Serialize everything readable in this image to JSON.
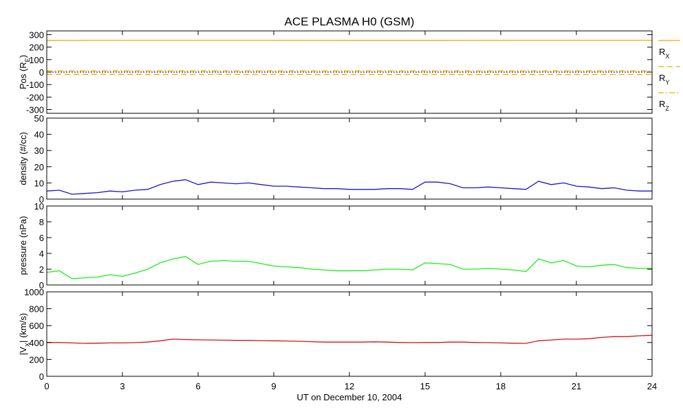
{
  "chart_data": {
    "title": "ACE PLASMA H0 (GSM)",
    "x_axis": {
      "label": "UT on December 10, 2004",
      "range": [
        0,
        24
      ],
      "ticks": [
        0,
        3,
        6,
        9,
        12,
        15,
        18,
        21,
        24
      ],
      "tick_labels": [
        "0",
        "3",
        "6",
        "9",
        "12",
        "15",
        "18",
        "21",
        "24"
      ]
    },
    "panels": [
      {
        "type": "line",
        "ylabel_main": "Pos (R",
        "ylabel_sub": "E",
        "ylabel_end": ")",
        "ylim": [
          -330,
          330
        ],
        "yticks": [
          -300,
          -200,
          -100,
          0,
          100,
          200,
          300
        ],
        "ytick_labels": [
          "-300",
          "-200",
          "-100",
          "0",
          "100",
          "200",
          "300"
        ],
        "zero_line": true,
        "series": [
          {
            "name_main": "R",
            "name_sub": "X",
            "dash": "solid",
            "color": "#f5a800",
            "x": [
              0,
              24
            ],
            "values": [
              254,
              255
            ]
          },
          {
            "name_main": "R",
            "name_sub": "Y",
            "dash": "dashed",
            "color": "#f5a800",
            "x": [
              0,
              24
            ],
            "values": [
              -18,
              -19
            ]
          },
          {
            "name_main": "R",
            "name_sub": "Z",
            "dash": "dashdot",
            "color": "#f5a800",
            "x": [
              0,
              24
            ],
            "values": [
              10,
              10
            ]
          }
        ]
      },
      {
        "type": "line",
        "ylabel_main": "density (#/cc)",
        "ylim": [
          0,
          50
        ],
        "yticks": [
          0,
          10,
          20,
          30,
          40,
          50
        ],
        "ytick_labels": [
          "0",
          "10",
          "20",
          "30",
          "40",
          "50"
        ],
        "series": [
          {
            "color": "#1f13c9",
            "x": [
              0,
              0.5,
              1,
              1.5,
              2,
              2.5,
              3,
              3.5,
              4,
              4.5,
              5,
              5.5,
              6,
              6.5,
              7,
              7.5,
              8,
              8.5,
              9,
              9.5,
              10,
              10.5,
              11,
              11.5,
              12,
              12.5,
              13,
              13.5,
              14,
              14.5,
              15,
              15.5,
              16,
              16.5,
              17,
              17.5,
              18,
              18.5,
              19,
              19.5,
              20,
              20.5,
              21,
              21.5,
              22,
              22.5,
              23,
              23.5,
              24
            ],
            "values": [
              5,
              5.5,
              3,
              3.5,
              4,
              5,
              4.5,
              5.5,
              6,
              9,
              11,
              12,
              9,
              10.5,
              10,
              9.5,
              10,
              9,
              8,
              8,
              7.5,
              7,
              6.5,
              6.5,
              6,
              6,
              6,
              6.5,
              6.5,
              6,
              10.5,
              10.5,
              9.5,
              7,
              7,
              7.5,
              7,
              6.5,
              6,
              11,
              9,
              10,
              8,
              7.5,
              6.5,
              7,
              5.5,
              5,
              5
            ]
          }
        ]
      },
      {
        "type": "line",
        "ylabel_main": "pressure (nPa)",
        "ylim": [
          0,
          10
        ],
        "yticks": [
          0,
          2,
          4,
          6,
          8,
          10
        ],
        "ytick_labels": [
          "0",
          "2",
          "4",
          "6",
          "8",
          "10"
        ],
        "series": [
          {
            "color": "#19ef19",
            "x": [
              0,
              0.5,
              1,
              1.5,
              2,
              2.5,
              3,
              3.5,
              4,
              4.5,
              5,
              5.5,
              6,
              6.5,
              7,
              7.5,
              8,
              8.5,
              9,
              9.5,
              10,
              10.5,
              11,
              11.5,
              12,
              12.5,
              13,
              13.5,
              14,
              14.5,
              15,
              15.5,
              16,
              16.5,
              17,
              17.5,
              18,
              18.5,
              19,
              19.5,
              20,
              20.5,
              21,
              21.5,
              22,
              22.5,
              23,
              23.5,
              24
            ],
            "values": [
              1.6,
              1.8,
              0.8,
              0.9,
              1,
              1.3,
              1.1,
              1.5,
              2,
              2.8,
              3.3,
              3.6,
              2.6,
              3,
              3.1,
              3,
              3,
              2.7,
              2.4,
              2.3,
              2.2,
              2,
              1.9,
              1.8,
              1.8,
              1.8,
              1.9,
              2,
              2,
              1.9,
              2.8,
              2.7,
              2.6,
              2,
              2,
              2.1,
              2,
              1.9,
              1.7,
              3.3,
              2.8,
              3.1,
              2.4,
              2.3,
              2.5,
              2.6,
              2.2,
              2.1,
              2.1
            ]
          }
        ]
      },
      {
        "type": "line",
        "ylabel_main": "|V",
        "ylabel_sub": "X",
        "ylabel_end": "| (km/s)",
        "ylim": [
          0,
          1000
        ],
        "yticks": [
          0,
          200,
          400,
          600,
          800,
          1000
        ],
        "ytick_labels": [
          "0",
          "200",
          "400",
          "600",
          "800",
          "1000"
        ],
        "series": [
          {
            "color": "#d11414",
            "x": [
              0,
              0.5,
              1,
              1.5,
              2,
              2.5,
              3,
              3.5,
              4,
              4.5,
              5,
              5.5,
              6,
              6.5,
              7,
              7.5,
              8,
              8.5,
              9,
              9.5,
              10,
              10.5,
              11,
              11.5,
              12,
              12.5,
              13,
              13.5,
              14,
              14.5,
              15,
              15.5,
              16,
              16.5,
              17,
              17.5,
              18,
              18.5,
              19,
              19.5,
              20,
              20.5,
              21,
              21.5,
              22,
              22.5,
              23,
              23.5,
              24
            ],
            "values": [
              400,
              400,
              395,
              390,
              392,
              395,
              395,
              398,
              405,
              420,
              440,
              435,
              432,
              430,
              428,
              425,
              425,
              422,
              420,
              418,
              415,
              410,
              405,
              405,
              405,
              405,
              408,
              405,
              400,
              398,
              400,
              400,
              405,
              405,
              400,
              398,
              395,
              392,
              390,
              420,
              430,
              440,
              440,
              445,
              460,
              470,
              470,
              480,
              485
            ]
          }
        ]
      }
    ]
  }
}
